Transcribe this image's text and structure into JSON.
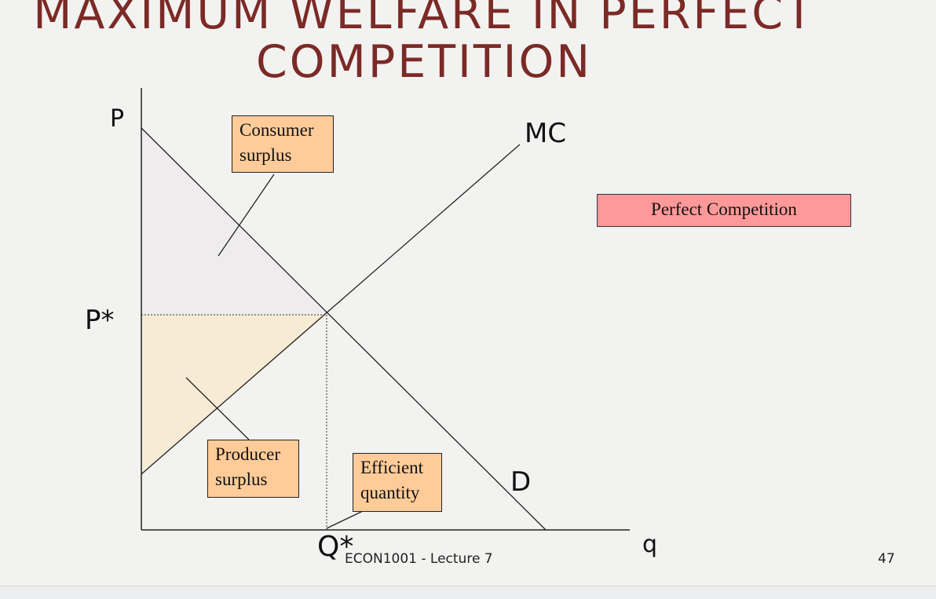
{
  "slide": {
    "title_line1": "MAXIMUM WELFARE IN PERFECT",
    "title_line2": "COMPETITION",
    "footer": "ECON1001 - Lecture 7",
    "page_number": "47"
  },
  "diagram": {
    "axis_y_label": "P",
    "axis_x_label": "q",
    "price_label": "P*",
    "quantity_label": "Q*",
    "supply_label": "MC",
    "demand_label": "D",
    "consumer_surplus_line1": "Consumer",
    "consumer_surplus_line2": "surplus",
    "producer_surplus_line1": "Producer",
    "producer_surplus_line2": "surplus",
    "efficient_quantity_line1": "Efficient",
    "efficient_quantity_line2": "quantity",
    "perfect_competition": "Perfect Competition"
  },
  "colors": {
    "title": "#7b2a26",
    "consumer_surplus_fill": "#eeecec",
    "producer_surplus_fill": "#f7ebd5",
    "callout_box": "#ffcc99",
    "perfect_competition_box": "#ff9999"
  }
}
